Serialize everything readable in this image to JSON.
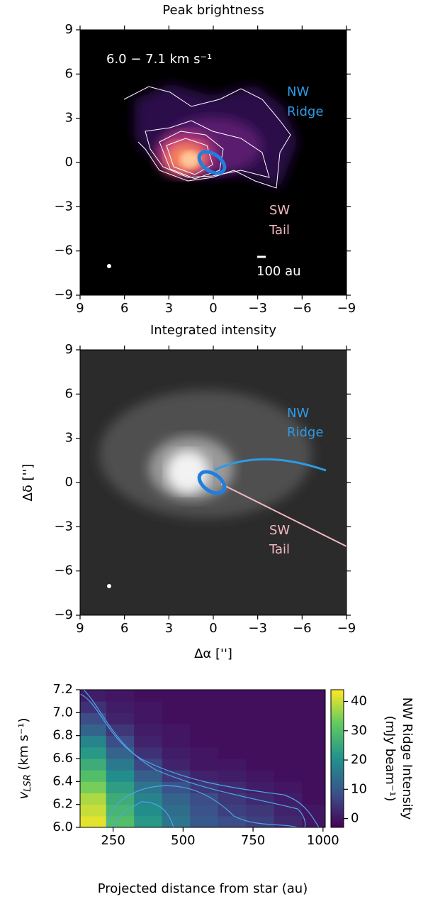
{
  "chart_data": [
    {
      "type": "image",
      "title": "Peak brightness",
      "xlim": [
        9,
        -9
      ],
      "ylim": [
        -9,
        9
      ],
      "xticks": [
        9,
        6,
        3,
        0,
        {
          "value": -3,
          "label": "−3"
        },
        {
          "value": -6,
          "label": "−6"
        },
        {
          "value": -9,
          "label": "−9"
        }
      ],
      "yticks": [
        {
          "value": -9,
          "label": "−9"
        },
        {
          "value": -6,
          "label": "−6"
        },
        {
          "value": -3,
          "label": "−3"
        },
        0,
        3,
        6,
        9
      ],
      "velocity_label": "6.0 − 7.1 km s⁻¹",
      "nw_label": [
        "NW",
        "Ridge"
      ],
      "sw_label": [
        "SW",
        "Tail"
      ],
      "scalebar_label": "100 au"
    },
    {
      "type": "image",
      "title": "Integrated intensity",
      "xlabel": "Δα ['']",
      "ylabel": "Δδ ['']",
      "xlim": [
        9,
        -9
      ],
      "ylim": [
        -9,
        9
      ],
      "xticks": [
        9,
        6,
        3,
        0,
        {
          "value": -3,
          "label": "−3"
        },
        {
          "value": -6,
          "label": "−6"
        },
        {
          "value": -9,
          "label": "−9"
        }
      ],
      "yticks": [
        {
          "value": -9,
          "label": "−9"
        },
        {
          "value": -6,
          "label": "−6"
        },
        {
          "value": -3,
          "label": "−3"
        },
        0,
        3,
        6,
        9
      ],
      "nw_label": [
        "NW",
        "Ridge"
      ],
      "sw_label": [
        "SW",
        "Tail"
      ]
    },
    {
      "type": "heatmap",
      "xlabel": "Projected distance from star (au)",
      "ylabel": "v",
      "ylabel_sub": "LSR",
      "ylabel_unit": " (km s⁻¹)",
      "colorbar_label": [
        "NW Ridge Intensity",
        "(mJy beam⁻¹)"
      ],
      "xlim": [
        132,
        1008
      ],
      "ylim": [
        6.0,
        7.2
      ],
      "zlim": [
        -3,
        44
      ],
      "xticks": [
        250,
        500,
        750,
        1000
      ],
      "yticks": [
        {
          "value": 6.0,
          "label": "6.0"
        },
        {
          "value": 6.2,
          "label": "6.2"
        },
        {
          "value": 6.4,
          "label": "6.4"
        },
        {
          "value": 6.6,
          "label": "6.6"
        },
        {
          "value": 6.8,
          "label": "6.8"
        },
        {
          "value": 7.0,
          "label": "7.0"
        },
        {
          "value": 7.2,
          "label": "7.2"
        }
      ],
      "zticks": [
        0,
        10,
        20,
        30,
        40
      ],
      "x": [
        175,
        275,
        375,
        475,
        575,
        675,
        775,
        875,
        975
      ],
      "y": [
        6.05,
        6.15,
        6.25,
        6.35,
        6.45,
        6.55,
        6.65,
        6.75,
        6.85,
        6.95,
        7.05,
        7.15
      ],
      "z": [
        [
          42,
          30,
          22,
          15,
          10,
          8,
          6,
          3,
          0
        ],
        [
          40,
          28,
          20,
          14,
          9,
          6,
          5,
          2,
          0
        ],
        [
          38,
          26,
          18,
          12,
          8,
          5,
          3,
          1,
          -1
        ],
        [
          34,
          23,
          15,
          9,
          5,
          3,
          1,
          0,
          -1
        ],
        [
          30,
          20,
          11,
          5,
          2,
          1,
          0,
          -1,
          -1
        ],
        [
          26,
          16,
          7,
          2,
          0,
          0,
          -1,
          -1,
          -1
        ],
        [
          22,
          12,
          4,
          1,
          0,
          -1,
          -1,
          -1,
          -1
        ],
        [
          18,
          8,
          2,
          0,
          -1,
          -1,
          -1,
          -1,
          -1
        ],
        [
          12,
          5,
          1,
          0,
          -1,
          -1,
          -1,
          -1,
          -1
        ],
        [
          8,
          2,
          0,
          -1,
          -1,
          -1,
          -1,
          -1,
          -1
        ],
        [
          4,
          1,
          0,
          -1,
          -1,
          -1,
          -1,
          -1,
          -1
        ],
        [
          1,
          0,
          -1,
          -1,
          -1,
          -1,
          -1,
          -1,
          -1
        ]
      ]
    }
  ]
}
